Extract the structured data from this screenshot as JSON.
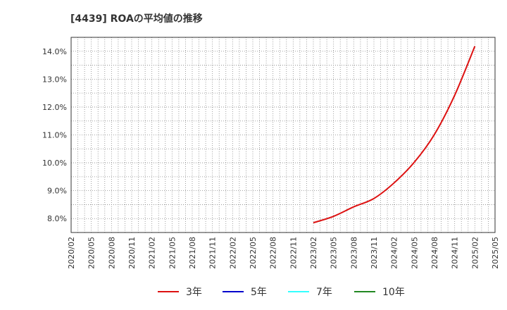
{
  "chart_data": {
    "type": "line",
    "title": "[4439]  ROAの平均値の推移",
    "xlabel": "",
    "ylabel": "",
    "ylim": [
      7.5,
      14.5
    ],
    "yticks": [
      8.0,
      9.0,
      10.0,
      11.0,
      12.0,
      13.0,
      14.0
    ],
    "ytick_labels": [
      "8.0%",
      "9.0%",
      "10.0%",
      "11.0%",
      "12.0%",
      "13.0%",
      "14.0%"
    ],
    "x_start": "2020/02",
    "x_end": "2025/05",
    "xtick_labels": [
      "2020/02",
      "2020/05",
      "2020/08",
      "2020/11",
      "2021/02",
      "2021/05",
      "2021/08",
      "2021/11",
      "2022/02",
      "2022/05",
      "2022/08",
      "2022/11",
      "2023/02",
      "2023/05",
      "2023/08",
      "2023/11",
      "2024/02",
      "2024/05",
      "2024/08",
      "2024/11",
      "2025/02",
      "2025/05"
    ],
    "grid": true,
    "legend_position": "bottom",
    "series": [
      {
        "name": "3年",
        "color": "#dd1111",
        "x": [
          "2023/02",
          "2023/05",
          "2023/08",
          "2023/11",
          "2024/02",
          "2024/05",
          "2024/08",
          "2024/11",
          "2025/02"
        ],
        "values": [
          7.85,
          8.08,
          8.42,
          8.72,
          9.28,
          10.02,
          11.02,
          12.42,
          14.18
        ]
      },
      {
        "name": "5年",
        "color": "#0000cc",
        "x": [],
        "values": []
      },
      {
        "name": "7年",
        "color": "#33ffff",
        "x": [],
        "values": []
      },
      {
        "name": "10年",
        "color": "#228822",
        "x": [],
        "values": []
      }
    ]
  }
}
